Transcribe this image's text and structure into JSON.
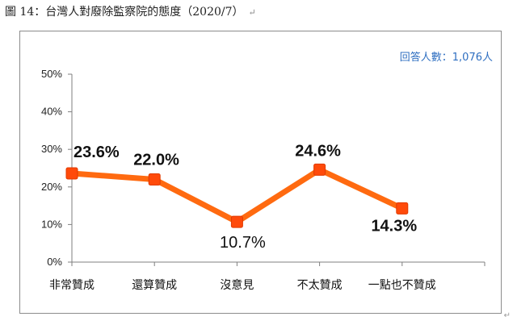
{
  "caption": {
    "text": "圖 14：台灣人對廢除監察院的態度（2020/7）",
    "return_mark": "↵"
  },
  "respondents": "回答人數：1,076人",
  "colors": {
    "line": "#FF6A10",
    "marker": "#FF4A0A",
    "respondents_text": "#2f6fc1"
  },
  "chart_data": {
    "type": "line",
    "categories": [
      "非常贊成",
      "還算贊成",
      "沒意見",
      "不太贊成",
      "一點也不贊成"
    ],
    "series": [
      {
        "values": [
          23.6,
          22.0,
          10.7,
          24.6,
          14.3
        ]
      }
    ],
    "data_labels": [
      "23.6%",
      "22.0%",
      "10.7%",
      "24.6%",
      "14.3%"
    ],
    "yticks": [
      "0%",
      "10%",
      "20%",
      "30%",
      "40%",
      "50%"
    ],
    "ylim": [
      0,
      50
    ],
    "grid": false,
    "legend": "none"
  }
}
